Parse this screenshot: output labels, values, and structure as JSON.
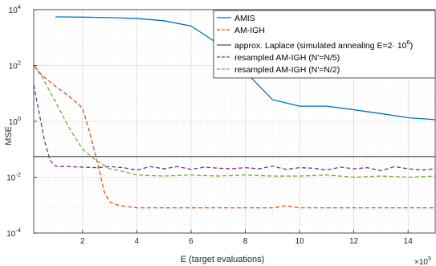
{
  "chart_data": {
    "type": "line",
    "xlabel": "E (target evaluations)",
    "ylabel": "MSE",
    "x_multiplier_label": "×10",
    "x_multiplier_exp": "5",
    "xlim": [
      0.2,
      15
    ],
    "ylim": [
      0.0001,
      10000
    ],
    "y_scale": "log",
    "grid": true,
    "legend_position": "top-right",
    "x_ticks": [
      2,
      4,
      6,
      8,
      10,
      12,
      14
    ],
    "x_tick_labels": [
      "2",
      "4",
      "6",
      "8",
      "10",
      "12",
      "14"
    ],
    "y_ticks": [
      0.0001,
      0.01,
      1,
      100,
      10000
    ],
    "y_tick_labels": [
      {
        "base": "10",
        "exp": "-4"
      },
      {
        "base": "10",
        "exp": "-2"
      },
      {
        "base": "10",
        "exp": "0"
      },
      {
        "base": "10",
        "exp": "2"
      },
      {
        "base": "10",
        "exp": "4"
      }
    ],
    "series": [
      {
        "name": "AMIS",
        "color": "#0072BD",
        "dash": "solid",
        "x": [
          1,
          2,
          3,
          4,
          5,
          6,
          7,
          8,
          9,
          10,
          11,
          12,
          13,
          14,
          15
        ],
        "y": [
          5500,
          5400,
          5200,
          4800,
          4000,
          2600,
          600,
          60,
          6,
          3.5,
          3.5,
          2.6,
          1.9,
          1.35,
          1.15
        ]
      },
      {
        "name": "AM-IGH",
        "color": "#D95319",
        "dash": "dashed",
        "x": [
          0.25,
          0.5,
          1,
          1.5,
          2,
          2.3,
          2.6,
          2.8,
          3,
          3.3,
          3.6,
          4,
          5,
          6,
          7,
          8,
          9,
          9.5,
          10,
          11,
          12,
          13,
          14,
          15
        ],
        "y": [
          90,
          45,
          18,
          8,
          3,
          0.3,
          0.02,
          0.003,
          0.0013,
          0.001,
          0.0009,
          0.0008,
          0.0008,
          0.0008,
          0.0008,
          0.0008,
          0.0008,
          0.00095,
          0.0008,
          0.0008,
          0.0008,
          0.0008,
          0.0008,
          0.0008
        ]
      },
      {
        "name": "approx. Laplace (simulated annealing E=2· 10",
        "name_exp": "6",
        "name_suffix": ")",
        "color": "#555555",
        "dash": "solid",
        "x": [
          0.2,
          15
        ],
        "y": [
          0.055,
          0.055
        ]
      },
      {
        "name": "resampled AM-IGH (N'=N/5)",
        "color": "#7E2F8E",
        "dash": "dashed",
        "x": [
          0.2,
          0.4,
          0.6,
          0.8,
          1,
          1.2,
          1.5,
          2,
          2.5,
          3,
          3.5,
          4,
          4.5,
          5,
          5.5,
          6,
          6.5,
          7,
          7.5,
          8,
          8.5,
          9,
          9.5,
          10,
          10.5,
          11,
          11.5,
          12,
          12.5,
          13,
          13.5,
          14,
          14.5,
          15
        ],
        "y": [
          20,
          2,
          0.2,
          0.04,
          0.025,
          0.024,
          0.024,
          0.023,
          0.022,
          0.024,
          0.022,
          0.018,
          0.024,
          0.02,
          0.024,
          0.019,
          0.023,
          0.021,
          0.02,
          0.022,
          0.02,
          0.025,
          0.019,
          0.022,
          0.021,
          0.018,
          0.023,
          0.02,
          0.022,
          0.017,
          0.024,
          0.02,
          0.018,
          0.02
        ]
      },
      {
        "name": "resampled AM-IGH (N'=N/2)",
        "color": "#77AC30",
        "dash": "dashed",
        "x": [
          0.2,
          0.5,
          1,
          1.5,
          2,
          2.5,
          3,
          3.5,
          4,
          5,
          6,
          7,
          8,
          9,
          10,
          11,
          12,
          13,
          14,
          15
        ],
        "y": [
          100,
          40,
          5,
          0.6,
          0.1,
          0.04,
          0.02,
          0.016,
          0.012,
          0.011,
          0.012,
          0.011,
          0.012,
          0.011,
          0.011,
          0.012,
          0.01,
          0.011,
          0.01,
          0.011
        ]
      }
    ]
  }
}
